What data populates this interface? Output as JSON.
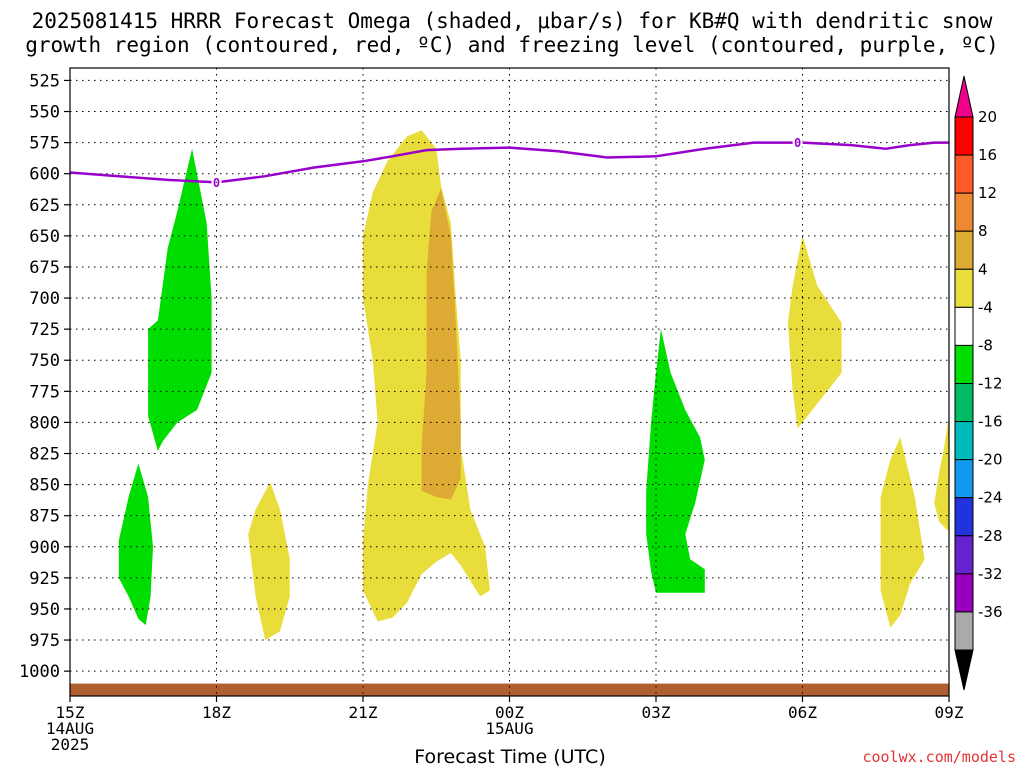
{
  "title": {
    "line1": "2025081415 HRRR Forecast Omega (shaded, μbar/s) for KB#Q with dendritic snow",
    "line2": "growth region (contoured, red, ºC) and freezing level (contoured, purple, ºC)"
  },
  "watermark": "coolwx.com/models",
  "chart_data": {
    "type": "time-height contour",
    "xlabel": "Forecast Time (UTC)",
    "ylabel": "",
    "ylim": [
      1020,
      515
    ],
    "y_ticks": [
      525,
      550,
      575,
      600,
      625,
      650,
      675,
      700,
      725,
      750,
      775,
      800,
      825,
      850,
      875,
      900,
      925,
      950,
      975,
      1000
    ],
    "x_range_hours": [
      0,
      18
    ],
    "x_ticks": [
      {
        "hour": 0,
        "line1": "15Z",
        "line2": "14AUG",
        "line3": "2025"
      },
      {
        "hour": 3,
        "line1": "18Z",
        "line2": "",
        "line3": ""
      },
      {
        "hour": 6,
        "line1": "21Z",
        "line2": "",
        "line3": ""
      },
      {
        "hour": 9,
        "line1": "00Z",
        "line2": "15AUG",
        "line3": ""
      },
      {
        "hour": 12,
        "line1": "03Z",
        "line2": "",
        "line3": ""
      },
      {
        "hour": 15,
        "line1": "06Z",
        "line2": "",
        "line3": ""
      },
      {
        "hour": 18,
        "line1": "09Z",
        "line2": "",
        "line3": ""
      }
    ],
    "grid": true,
    "colorbar": {
      "labels": [
        "20",
        "16",
        "12",
        "8",
        "4",
        "-4",
        "-8",
        "-12",
        "-16",
        "-20",
        "-24",
        "-28",
        "-32",
        "-36"
      ],
      "bins": [
        {
          "color": "#ff0000"
        },
        {
          "color": "#ff5a2a"
        },
        {
          "color": "#ee8833"
        },
        {
          "color": "#ddaa33"
        },
        {
          "color": "#e8dd3a"
        },
        {
          "color": "#ffffff"
        },
        {
          "color": "#00dd00"
        },
        {
          "color": "#00bb66"
        },
        {
          "color": "#00bbbb"
        },
        {
          "color": "#1199ee"
        },
        {
          "color": "#2233dd"
        },
        {
          "color": "#6622cc"
        },
        {
          "color": "#9900bb"
        },
        {
          "color": "#aaaaaa"
        }
      ],
      "top_arrow_color": "#ee0088",
      "bottom_arrow_color": "#000000"
    },
    "freezing_level": {
      "label": "0",
      "color": "#9900cc",
      "points": [
        [
          0,
          599
        ],
        [
          1,
          602
        ],
        [
          2,
          605
        ],
        [
          3,
          607
        ],
        [
          4,
          602
        ],
        [
          5,
          595
        ],
        [
          6,
          590
        ],
        [
          6.6,
          586
        ],
        [
          7.3,
          581
        ],
        [
          8,
          580
        ],
        [
          9,
          579
        ],
        [
          10,
          582
        ],
        [
          11,
          587
        ],
        [
          12,
          586
        ],
        [
          13,
          580
        ],
        [
          14,
          575
        ],
        [
          15,
          575
        ],
        [
          16,
          577
        ],
        [
          16.7,
          580
        ],
        [
          17.2,
          577
        ],
        [
          17.7,
          575
        ],
        [
          18,
          575
        ]
      ],
      "label_hours": [
        3,
        14.9
      ]
    },
    "omega_regions": [
      {
        "color": "#00dd00",
        "points": [
          [
            1.6,
            795
          ],
          [
            1.6,
            725
          ],
          [
            1.8,
            718
          ],
          [
            2.0,
            660
          ],
          [
            2.2,
            630
          ],
          [
            2.5,
            580
          ],
          [
            2.6,
            600
          ],
          [
            2.8,
            640
          ],
          [
            2.9,
            700
          ],
          [
            2.9,
            760
          ],
          [
            2.6,
            790
          ],
          [
            2.2,
            800
          ],
          [
            1.9,
            815
          ],
          [
            1.8,
            823
          ]
        ]
      },
      {
        "color": "#00dd00",
        "points": [
          [
            1.0,
            895
          ],
          [
            1.2,
            860
          ],
          [
            1.4,
            833
          ],
          [
            1.6,
            860
          ],
          [
            1.7,
            900
          ],
          [
            1.65,
            940
          ],
          [
            1.55,
            963
          ],
          [
            1.4,
            958
          ],
          [
            1.2,
            940
          ],
          [
            1.0,
            925
          ]
        ]
      },
      {
        "color": "#00dd00",
        "points": [
          [
            11.8,
            855
          ],
          [
            11.9,
            800
          ],
          [
            12.0,
            760
          ],
          [
            12.1,
            725
          ],
          [
            12.3,
            760
          ],
          [
            12.6,
            790
          ],
          [
            12.9,
            812
          ],
          [
            13.0,
            830
          ],
          [
            12.8,
            865
          ],
          [
            12.6,
            890
          ],
          [
            12.7,
            910
          ],
          [
            13.0,
            918
          ],
          [
            13.0,
            937
          ],
          [
            12.0,
            937
          ],
          [
            11.9,
            920
          ],
          [
            11.8,
            890
          ]
        ]
      },
      {
        "color": "#e8dd3a",
        "points": [
          [
            6.0,
            895
          ],
          [
            6.1,
            850
          ],
          [
            6.3,
            800
          ],
          [
            6.2,
            750
          ],
          [
            6.0,
            700
          ],
          [
            6.0,
            650
          ],
          [
            6.2,
            615
          ],
          [
            6.5,
            590
          ],
          [
            6.9,
            570
          ],
          [
            7.2,
            565
          ],
          [
            7.5,
            580
          ],
          [
            7.6,
            610
          ],
          [
            7.8,
            640
          ],
          [
            7.9,
            700
          ],
          [
            8.0,
            750
          ],
          [
            8.0,
            820
          ],
          [
            8.2,
            870
          ],
          [
            8.5,
            900
          ],
          [
            8.6,
            935
          ],
          [
            8.4,
            940
          ],
          [
            8.0,
            915
          ],
          [
            7.8,
            905
          ],
          [
            7.5,
            912
          ],
          [
            7.2,
            922
          ],
          [
            6.9,
            945
          ],
          [
            6.6,
            957
          ],
          [
            6.3,
            960
          ],
          [
            6.0,
            935
          ]
        ]
      },
      {
        "color": "#ddaa33",
        "points": [
          [
            7.2,
            820
          ],
          [
            7.3,
            760
          ],
          [
            7.3,
            680
          ],
          [
            7.4,
            630
          ],
          [
            7.6,
            612
          ],
          [
            7.8,
            650
          ],
          [
            7.9,
            720
          ],
          [
            8.0,
            800
          ],
          [
            8.0,
            845
          ],
          [
            7.8,
            862
          ],
          [
            7.5,
            860
          ],
          [
            7.2,
            855
          ]
        ]
      },
      {
        "color": "#e8dd3a",
        "points": [
          [
            3.65,
            890
          ],
          [
            3.8,
            870
          ],
          [
            4.1,
            848
          ],
          [
            4.3,
            870
          ],
          [
            4.5,
            910
          ],
          [
            4.5,
            940
          ],
          [
            4.3,
            968
          ],
          [
            4.0,
            975
          ],
          [
            3.8,
            940
          ]
        ]
      },
      {
        "color": "#e8dd3a",
        "points": [
          [
            14.7,
            720
          ],
          [
            14.8,
            690
          ],
          [
            15.0,
            650
          ],
          [
            15.3,
            690
          ],
          [
            15.8,
            720
          ],
          [
            15.8,
            760
          ],
          [
            15.3,
            785
          ],
          [
            14.9,
            805
          ],
          [
            14.8,
            775
          ]
        ]
      },
      {
        "color": "#e8dd3a",
        "points": [
          [
            16.6,
            920
          ],
          [
            16.6,
            860
          ],
          [
            16.8,
            830
          ],
          [
            17.0,
            812
          ],
          [
            17.3,
            860
          ],
          [
            17.5,
            910
          ],
          [
            17.2,
            930
          ],
          [
            17.0,
            955
          ],
          [
            16.8,
            965
          ],
          [
            16.6,
            935
          ]
        ]
      },
      {
        "color": "#e8dd3a",
        "points": [
          [
            17.7,
            865
          ],
          [
            17.8,
            840
          ],
          [
            17.9,
            820
          ],
          [
            18.0,
            795
          ],
          [
            18.0,
            888
          ],
          [
            17.8,
            880
          ]
        ]
      }
    ],
    "ground": {
      "color": "#b06030",
      "top_hpa": 1010
    }
  }
}
